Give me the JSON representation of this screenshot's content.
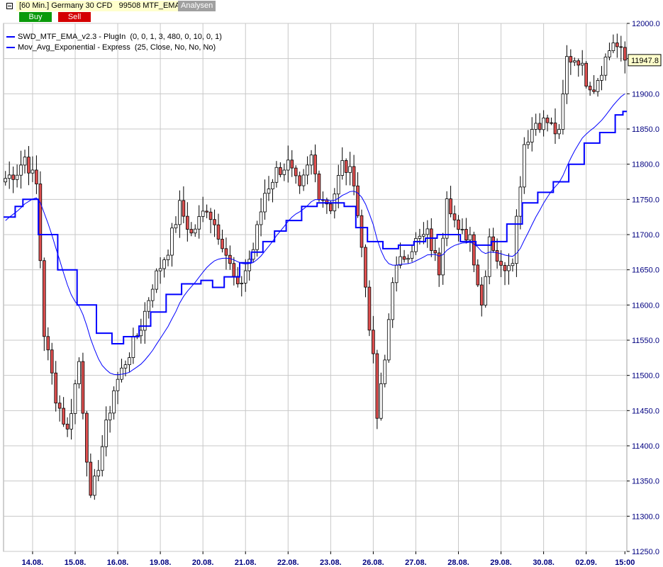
{
  "header": {
    "title": "[60 Min.] Germany 30 CFD   99508 MTF_EMA",
    "analysen_label": "Analysen",
    "buy_label": "Buy",
    "sell_label": "Sell"
  },
  "colors": {
    "bull": "#ffffff",
    "bear": "#e05050",
    "wick": "#000000",
    "ema": "#0000ff",
    "mtf": "#0000ff",
    "grid": "#c8c8c8",
    "axis_text": "#000080"
  },
  "chart_data": {
    "type": "candlestick",
    "ylim": [
      11250,
      12000
    ],
    "y_ticks": [
      12000,
      11950,
      11900,
      11850,
      11800,
      11750,
      11700,
      11650,
      11600,
      11550,
      11500,
      11450,
      11400,
      11350,
      11300,
      11250
    ],
    "y_tick_labels": [
      "12000.0",
      "11950.0",
      "11900.0",
      "11850.0",
      "11800.0",
      "11750.0",
      "11700.0",
      "11650.0",
      "11600.0",
      "11550.0",
      "11500.0",
      "11450.0",
      "11400.0",
      "11350.0",
      "11300.0",
      "11250.0"
    ],
    "x_labels": [
      "14.08.",
      "15.08.",
      "16.08.",
      "19.08.",
      "20.08.",
      "21.08.",
      "22.08.",
      "23.08.",
      "26.08.",
      "27.08.",
      "28.08.",
      "29.08.",
      "30.08.",
      "02.09.",
      "15:00"
    ],
    "x_label_bars": [
      7,
      18,
      29,
      40,
      51,
      62,
      73,
      84,
      95,
      106,
      117,
      128,
      139,
      150,
      160
    ],
    "n_bars": 161,
    "last_price": "11947.8",
    "grid": true,
    "legend": [
      "SWD_MTF_EMA_v2.3 - PlugIn  (0, 0, 1, 3, 480, 0, 10, 0, 1)",
      "Mov_Avg_Exponential - Express  (25, Close, No, No, No)"
    ],
    "close_anchors": [
      [
        0,
        11780
      ],
      [
        3,
        11790
      ],
      [
        5,
        11810
      ],
      [
        8,
        11770
      ],
      [
        10,
        11560
      ],
      [
        13,
        11470
      ],
      [
        16,
        11420
      ],
      [
        19,
        11520
      ],
      [
        22,
        11320
      ],
      [
        25,
        11400
      ],
      [
        28,
        11480
      ],
      [
        31,
        11520
      ],
      [
        35,
        11570
      ],
      [
        38,
        11630
      ],
      [
        42,
        11680
      ],
      [
        45,
        11740
      ],
      [
        48,
        11700
      ],
      [
        52,
        11740
      ],
      [
        56,
        11690
      ],
      [
        60,
        11620
      ],
      [
        64,
        11680
      ],
      [
        67,
        11760
      ],
      [
        70,
        11790
      ],
      [
        73,
        11800
      ],
      [
        76,
        11760
      ],
      [
        79,
        11810
      ],
      [
        81,
        11760
      ],
      [
        84,
        11740
      ],
      [
        87,
        11800
      ],
      [
        90,
        11780
      ],
      [
        92,
        11680
      ],
      [
        95,
        11520
      ],
      [
        96,
        11440
      ],
      [
        98,
        11520
      ],
      [
        100,
        11640
      ],
      [
        103,
        11670
      ],
      [
        106,
        11690
      ],
      [
        109,
        11700
      ],
      [
        112,
        11650
      ],
      [
        114,
        11760
      ],
      [
        117,
        11700
      ],
      [
        120,
        11700
      ],
      [
        123,
        11600
      ],
      [
        125,
        11700
      ],
      [
        128,
        11650
      ],
      [
        131,
        11670
      ],
      [
        134,
        11830
      ],
      [
        137,
        11860
      ],
      [
        140,
        11860
      ],
      [
        143,
        11840
      ],
      [
        145,
        11950
      ],
      [
        148,
        11950
      ],
      [
        150,
        11920
      ],
      [
        152,
        11910
      ],
      [
        155,
        11950
      ],
      [
        157,
        11975
      ],
      [
        160,
        11948
      ]
    ],
    "mtf_steps": [
      [
        0,
        11725
      ],
      [
        3,
        11740
      ],
      [
        5,
        11750
      ],
      [
        9,
        11700
      ],
      [
        14,
        11650
      ],
      [
        19,
        11600
      ],
      [
        24,
        11560
      ],
      [
        28,
        11545
      ],
      [
        31,
        11555
      ],
      [
        35,
        11570
      ],
      [
        38,
        11590
      ],
      [
        42,
        11615
      ],
      [
        46,
        11630
      ],
      [
        51,
        11635
      ],
      [
        54,
        11625
      ],
      [
        57,
        11640
      ],
      [
        61,
        11660
      ],
      [
        64,
        11675
      ],
      [
        67,
        11690
      ],
      [
        70,
        11705
      ],
      [
        73,
        11720
      ],
      [
        77,
        11740
      ],
      [
        81,
        11745
      ],
      [
        85,
        11745
      ],
      [
        88,
        11740
      ],
      [
        91,
        11710
      ],
      [
        94,
        11690
      ],
      [
        98,
        11680
      ],
      [
        102,
        11685
      ],
      [
        106,
        11690
      ],
      [
        109,
        11695
      ],
      [
        112,
        11700
      ],
      [
        115,
        11700
      ],
      [
        118,
        11690
      ],
      [
        122,
        11685
      ],
      [
        126,
        11690
      ],
      [
        130,
        11715
      ],
      [
        134,
        11745
      ],
      [
        138,
        11760
      ],
      [
        142,
        11775
      ],
      [
        146,
        11800
      ],
      [
        150,
        11830
      ],
      [
        154,
        11845
      ],
      [
        158,
        11870
      ],
      [
        160,
        11875
      ]
    ]
  }
}
